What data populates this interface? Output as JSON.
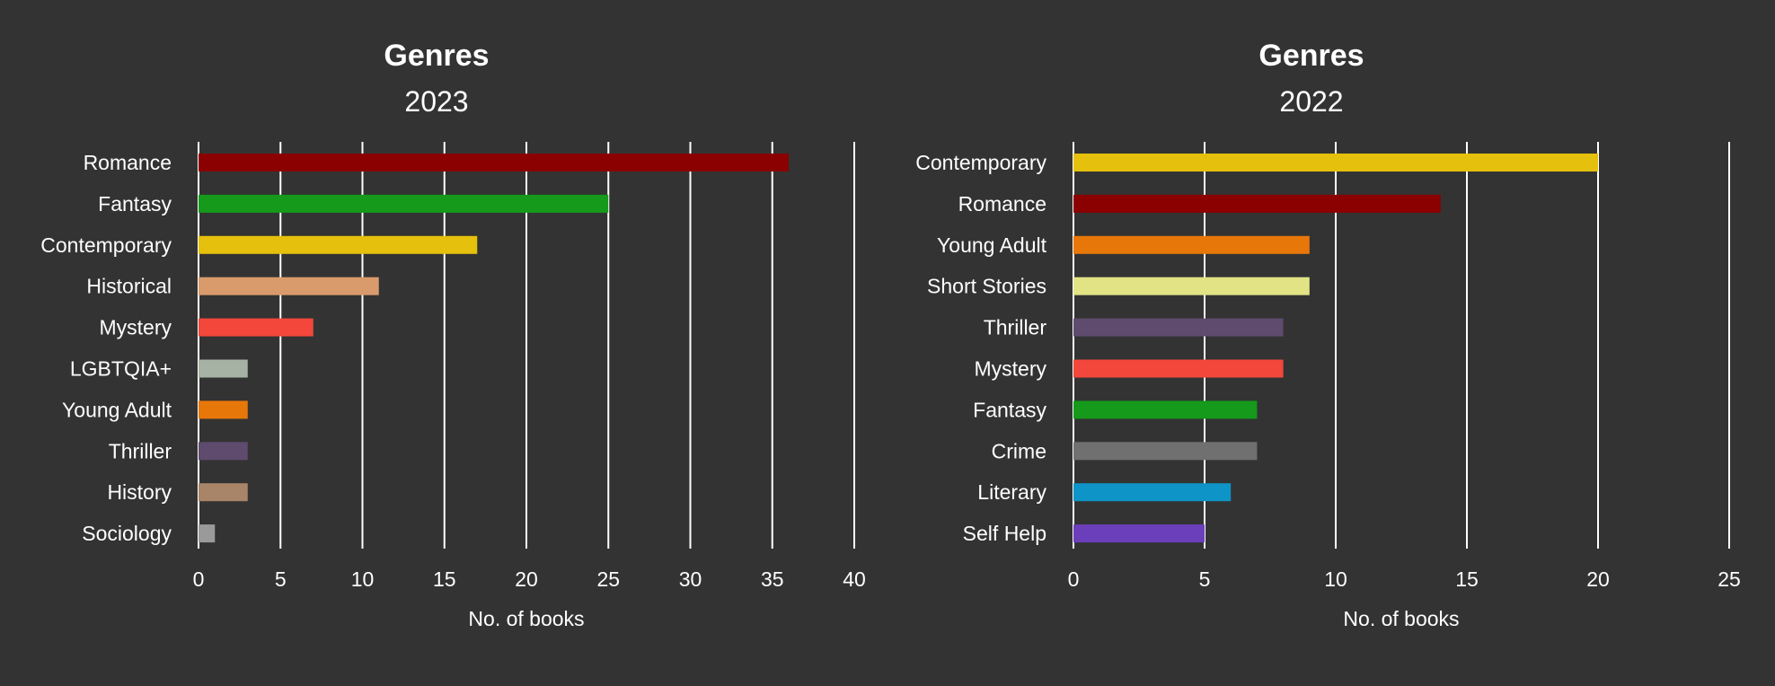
{
  "chart_data": [
    {
      "type": "bar",
      "orientation": "horizontal",
      "title": "Genres",
      "subtitle": "2023",
      "xlabel": "No. of books",
      "xlim": [
        0,
        40
      ],
      "xticks": [
        0,
        5,
        10,
        15,
        20,
        25,
        30,
        35,
        40
      ],
      "grid": true,
      "categories": [
        "Romance",
        "Fantasy",
        "Contemporary",
        "Historical",
        "Mystery",
        "LGBTQIA+",
        "Young Adult",
        "Thriller",
        "History",
        "Sociology"
      ],
      "values": [
        36,
        25,
        17,
        11,
        7,
        3,
        3,
        3,
        3,
        1
      ],
      "colors": [
        "#8b0000",
        "#159a1b",
        "#e5c00c",
        "#d99a6c",
        "#f2473a",
        "#a6b2a3",
        "#e8770a",
        "#5e4b6e",
        "#a88468",
        "#9a9a9a"
      ]
    },
    {
      "type": "bar",
      "orientation": "horizontal",
      "title": "Genres",
      "subtitle": "2022",
      "xlabel": "No. of books",
      "xlim": [
        0,
        25
      ],
      "xticks": [
        0,
        5,
        10,
        15,
        20,
        25
      ],
      "grid": true,
      "categories": [
        "Contemporary",
        "Romance",
        "Young Adult",
        "Short Stories",
        "Thriller",
        "Mystery",
        "Fantasy",
        "Crime",
        "Literary",
        "Self Help"
      ],
      "values": [
        20,
        14,
        9,
        9,
        8,
        8,
        7,
        7,
        6,
        5
      ],
      "colors": [
        "#e5c00c",
        "#8b0000",
        "#e8770a",
        "#e1e385",
        "#5e4b6e",
        "#f2473a",
        "#159a1b",
        "#707070",
        "#0e94c6",
        "#6b3fbb"
      ]
    }
  ]
}
